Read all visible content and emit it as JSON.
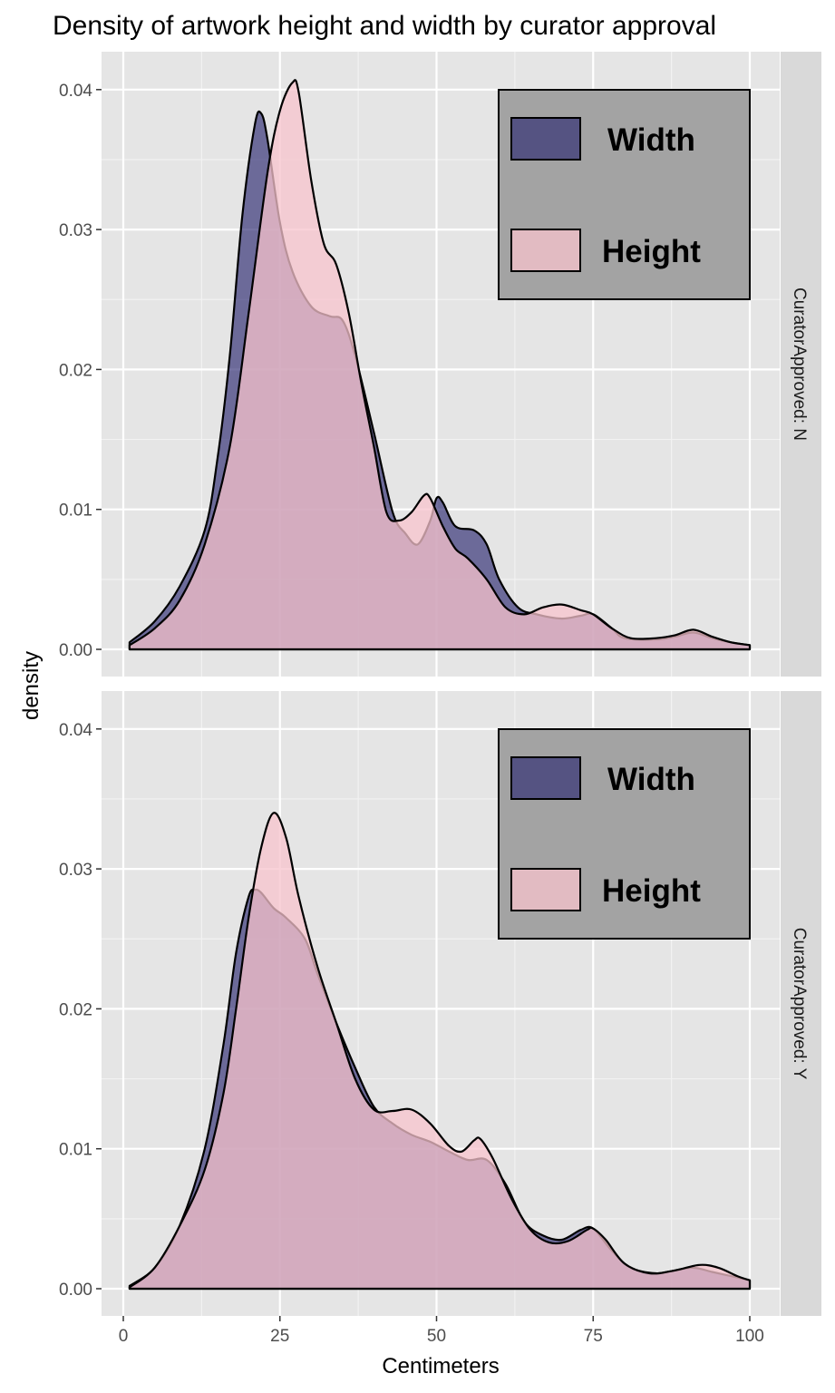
{
  "chart_data": {
    "type": "area",
    "subtype": "density",
    "title": "Density of artwork height and width by curator approval",
    "xlabel": "Centimeters",
    "ylabel": "density",
    "xlim": [
      0,
      100
    ],
    "ylim": [
      0,
      0.042
    ],
    "x_ticks": [
      "0",
      "25",
      "50",
      "75",
      "100"
    ],
    "y_ticks": [
      "0.00",
      "0.01",
      "0.02",
      "0.03",
      "0.04"
    ],
    "grid": true,
    "legend_position": "top-right",
    "legend": [
      {
        "label": "Width",
        "color": "#2b2870"
      },
      {
        "label": "Height",
        "color": "#f7c3cc"
      }
    ],
    "panels": [
      {
        "strip": "CuratorApproved: N",
        "series": [
          {
            "name": "Width",
            "color": "#2b2870",
            "points": [
              [
                1,
                0.0005
              ],
              [
                5,
                0.002
              ],
              [
                9,
                0.0045
              ],
              [
                13,
                0.0085
              ],
              [
                15,
                0.0135
              ],
              [
                17,
                0.021
              ],
              [
                19,
                0.031
              ],
              [
                21,
                0.0375
              ],
              [
                22,
                0.0383
              ],
              [
                23,
                0.0365
              ],
              [
                25,
                0.0305
              ],
              [
                27,
                0.027
              ],
              [
                30,
                0.0245
              ],
              [
                33,
                0.0238
              ],
              [
                35,
                0.0235
              ],
              [
                37,
                0.021
              ],
              [
                40,
                0.0155
              ],
              [
                43,
                0.0098
              ],
              [
                45,
                0.0083
              ],
              [
                47,
                0.0075
              ],
              [
                49,
                0.0092
              ],
              [
                50,
                0.0108
              ],
              [
                51,
                0.0105
              ],
              [
                53,
                0.0088
              ],
              [
                56,
                0.0085
              ],
              [
                58,
                0.0075
              ],
              [
                60,
                0.005
              ],
              [
                63,
                0.003
              ],
              [
                66,
                0.0025
              ],
              [
                70,
                0.0022
              ],
              [
                73,
                0.0024
              ],
              [
                75,
                0.0025
              ],
              [
                78,
                0.0015
              ],
              [
                80,
                0.0008
              ],
              [
                85,
                0.0007
              ],
              [
                88,
                0.0009
              ],
              [
                91,
                0.0012
              ],
              [
                94,
                0.0008
              ],
              [
                97,
                0.0005
              ],
              [
                100,
                0.0003
              ]
            ]
          },
          {
            "name": "Height",
            "color": "#f7c3cc",
            "points": [
              [
                1,
                0.0003
              ],
              [
                5,
                0.0015
              ],
              [
                9,
                0.0035
              ],
              [
                13,
                0.0075
              ],
              [
                17,
                0.0145
              ],
              [
                20,
                0.024
              ],
              [
                23,
                0.034
              ],
              [
                25,
                0.0385
              ],
              [
                27,
                0.0405
              ],
              [
                28,
                0.0398
              ],
              [
                30,
                0.0335
              ],
              [
                32,
                0.029
              ],
              [
                34,
                0.0275
              ],
              [
                36,
                0.024
              ],
              [
                38,
                0.019
              ],
              [
                40,
                0.0145
              ],
              [
                42,
                0.0098
              ],
              [
                44,
                0.0092
              ],
              [
                46,
                0.0098
              ],
              [
                48,
                0.011
              ],
              [
                49,
                0.0108
              ],
              [
                51,
                0.0088
              ],
              [
                53,
                0.0072
              ],
              [
                55,
                0.0065
              ],
              [
                58,
                0.005
              ],
              [
                61,
                0.003
              ],
              [
                64,
                0.0025
              ],
              [
                67,
                0.003
              ],
              [
                70,
                0.0032
              ],
              [
                73,
                0.0028
              ],
              [
                75,
                0.0025
              ],
              [
                78,
                0.0015
              ],
              [
                81,
                0.0008
              ],
              [
                85,
                0.0008
              ],
              [
                88,
                0.001
              ],
              [
                91,
                0.0014
              ],
              [
                94,
                0.0009
              ],
              [
                97,
                0.0005
              ],
              [
                100,
                0.0003
              ]
            ]
          }
        ]
      },
      {
        "strip": "CuratorApproved: Y",
        "series": [
          {
            "name": "Width",
            "color": "#2b2870",
            "points": [
              [
                1,
                0.0002
              ],
              [
                5,
                0.0015
              ],
              [
                9,
                0.0045
              ],
              [
                13,
                0.01
              ],
              [
                16,
                0.0175
              ],
              [
                18,
                0.024
              ],
              [
                20,
                0.028
              ],
              [
                21,
                0.0285
              ],
              [
                22,
                0.0283
              ],
              [
                24,
                0.0272
              ],
              [
                26,
                0.0265
              ],
              [
                29,
                0.025
              ],
              [
                31,
                0.0225
              ],
              [
                34,
                0.019
              ],
              [
                37,
                0.0158
              ],
              [
                40,
                0.013
              ],
              [
                43,
                0.0118
              ],
              [
                46,
                0.011
              ],
              [
                49,
                0.0105
              ],
              [
                52,
                0.0098
              ],
              [
                55,
                0.0092
              ],
              [
                58,
                0.0092
              ],
              [
                61,
                0.0075
              ],
              [
                64,
                0.0048
              ],
              [
                67,
                0.0038
              ],
              [
                70,
                0.0035
              ],
              [
                73,
                0.0042
              ],
              [
                75,
                0.0043
              ],
              [
                78,
                0.0027
              ],
              [
                81,
                0.0015
              ],
              [
                85,
                0.0011
              ],
              [
                88,
                0.0013
              ],
              [
                91,
                0.0015
              ],
              [
                94,
                0.0012
              ],
              [
                97,
                0.0009
              ],
              [
                100,
                0.0006
              ]
            ]
          },
          {
            "name": "Height",
            "color": "#f7c3cc",
            "points": [
              [
                1,
                0.0001
              ],
              [
                5,
                0.0015
              ],
              [
                9,
                0.0045
              ],
              [
                13,
                0.0085
              ],
              [
                16,
                0.014
              ],
              [
                18,
                0.02
              ],
              [
                20,
                0.0265
              ],
              [
                22,
                0.0315
              ],
              [
                24,
                0.034
              ],
              [
                26,
                0.0322
              ],
              [
                28,
                0.028
              ],
              [
                31,
                0.023
              ],
              [
                34,
                0.019
              ],
              [
                37,
                0.015
              ],
              [
                40,
                0.0128
              ],
              [
                43,
                0.0127
              ],
              [
                46,
                0.0128
              ],
              [
                49,
                0.0118
              ],
              [
                52,
                0.0102
              ],
              [
                54,
                0.0098
              ],
              [
                56,
                0.0106
              ],
              [
                57,
                0.0107
              ],
              [
                59,
                0.0093
              ],
              [
                62,
                0.0064
              ],
              [
                65,
                0.0042
              ],
              [
                68,
                0.0033
              ],
              [
                71,
                0.0034
              ],
              [
                74,
                0.0042
              ],
              [
                75,
                0.0043
              ],
              [
                77,
                0.0035
              ],
              [
                80,
                0.0018
              ],
              [
                84,
                0.0011
              ],
              [
                88,
                0.0013
              ],
              [
                92,
                0.0017
              ],
              [
                95,
                0.0015
              ],
              [
                98,
                0.0009
              ],
              [
                100,
                0.0006
              ]
            ]
          }
        ]
      }
    ]
  }
}
